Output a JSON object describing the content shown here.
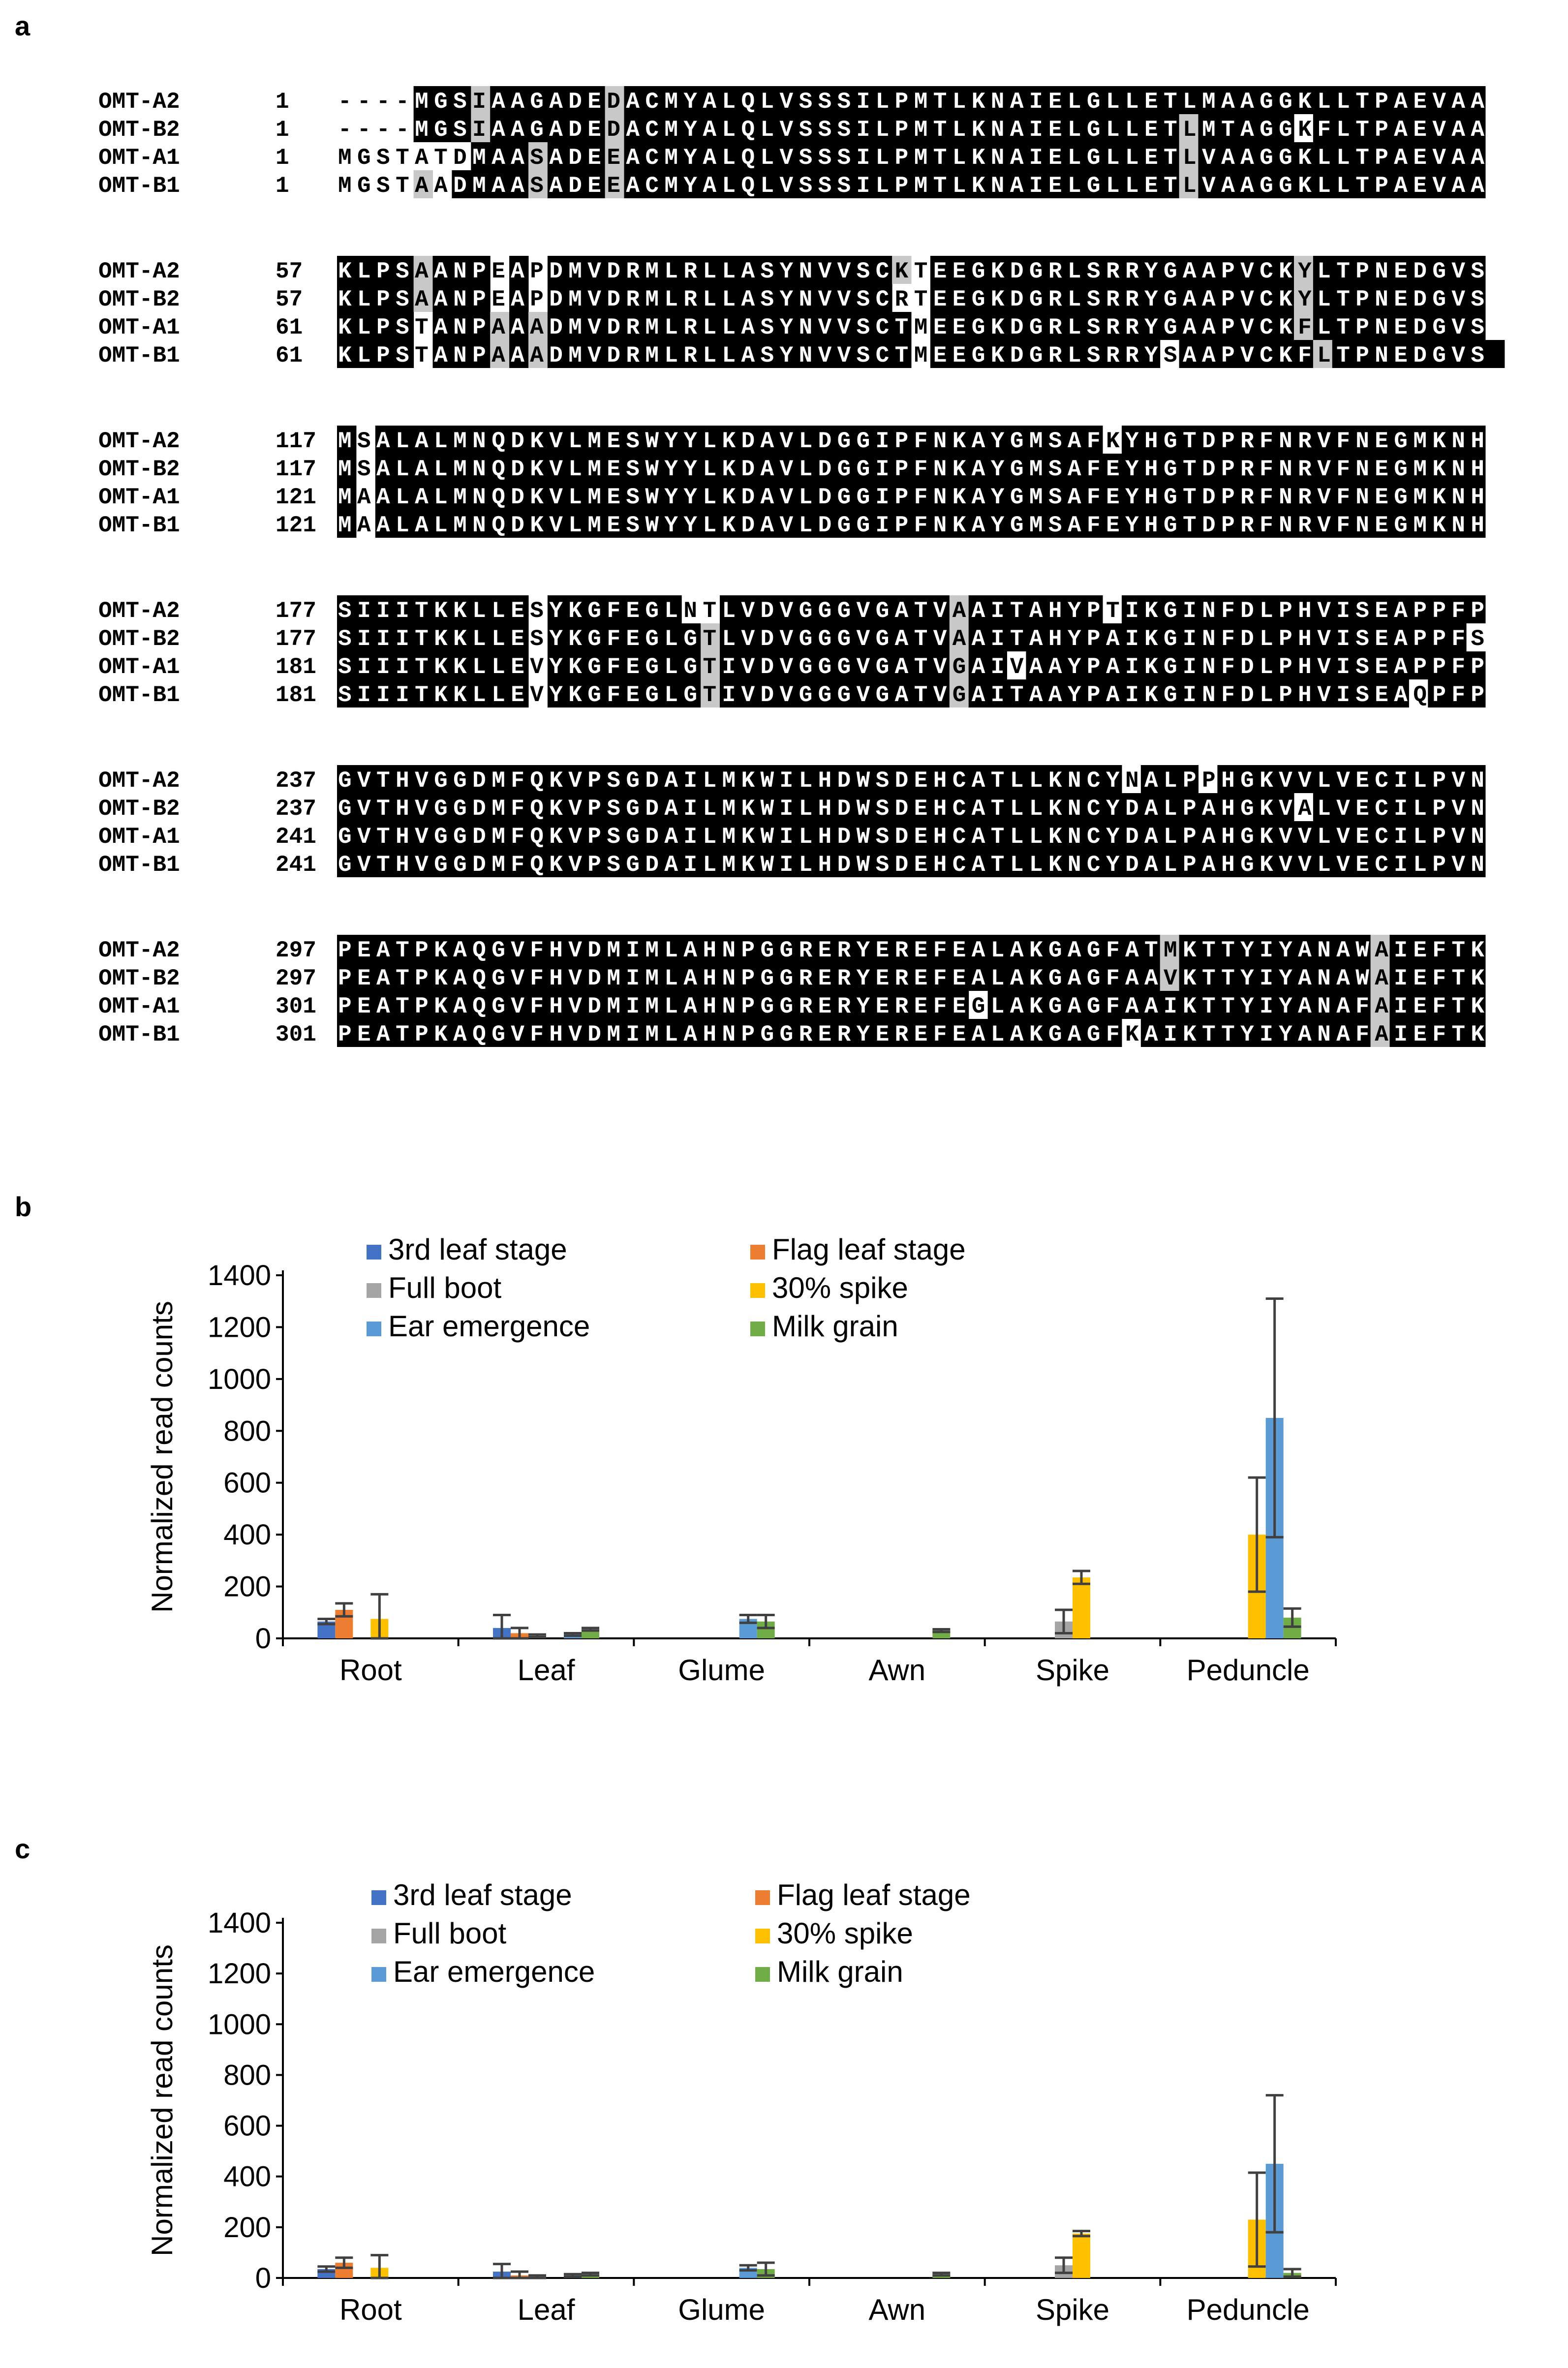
{
  "panels": {
    "a": "a",
    "b": "b",
    "c": "c"
  },
  "alignment": {
    "blocks": [
      {
        "rows": [
          {
            "name": "OMT-A2",
            "start": "1",
            "seq": "----MGSIAAGADEDACMYALQLVSSSILPMTLKNAIELGLLETLMAAGGKLLTPAEVAA",
            "shade": "wwwwbbbgbbbbbbgbbbbbbbbbbbbbbbbbbbbbbbbbbbbbbbbbbbbbbbbbbbbb"
          },
          {
            "name": "OMT-B2",
            "start": "1",
            "seq": "----MGSIAAGADEDACMYALQLVSSSILPMTLKNAIELGLLETLMTAGGKFLTPAEVAA",
            "shade": "wwwwbbbgbbbbbbgbbbbbbbbbbbbbbbbbbbbbbbbbbbbbgbbbbbwbbbbbbbbb"
          },
          {
            "name": "OMT-A1",
            "start": "1",
            "seq": "MGSTATDMAASADEEACMYALQLVSSSILPMTLKNAIELGLLETLVAAGGKLLTPAEVAA",
            "shade": "wwwwwwwbbbgbbbgbbbbbbbbbbbbbbbbbbbbbbbbbbbbbgbbbbbbbbbbbbbbb"
          },
          {
            "name": "OMT-B1",
            "start": "1",
            "seq": "MGSTAADMAASADEEACMYALQLVSSSILPMTLKNAIELGLLETLVAAGGKLLTPAEVAA",
            "shade": "wwwwgwbbbbgbbbgbbbbbbbbbbbbbbbbbbbbbbbbbbbbbgbbbbbbbbbbbbbbb"
          }
        ]
      },
      {
        "rows": [
          {
            "name": "OMT-A2",
            "start": "57",
            "seq": "KLPSAANPEAPDMVDRMLRLLASYNVVSCKTEEGKDGRLSRRYGAAPVCKYLTPNEDGVS",
            "shade": "bbbbgbbbwbwbbbbbbbbbbbbbbbbbbgwbbbbbbbbbbbbbbbbbbbgbbbbbbbbb"
          },
          {
            "name": "OMT-B2",
            "start": "57",
            "seq": "KLPSAANPEAPDMVDRMLRLLASYNVVSCRTEEGKDGRLSRRYGAAPVCKYLTPNEDGVS",
            "shade": "bbbbgbbbwbwbbbbbbbbbbbbbbbbbbwwbbbbbbbbbbbbbbbbbbbgbbbbbbbbb"
          },
          {
            "name": "OMT-A1",
            "start": "61",
            "seq": "KLPSTANPAAADMVDRMLRLLASYNVVSCTMEEGKDGRLSRRYGAAPVCKFLTPNEDGVS",
            "shade": "bbbbwbbbgbgbbbbbbbbbbbbbbbbbbbwbbbbbbbbbbbbbbbbbbbgbbbbbbbbb"
          },
          {
            "name": "OMT-B1",
            "start": "61",
            "seq": "KLPSTANPAAADMVDRMLRLLASYNVVSCTMEEGKDGRLSRRYSAAPVCKFLTPNEDGVS",
            "shade": "bbbbwbbbgbgbbbbbbbbbbbbbbbbbbbwbbbbbbbbbbbbwbbbbbbbgbbbbbbbbb"
          }
        ]
      },
      {
        "rows": [
          {
            "name": "OMT-A2",
            "start": "117",
            "seq": "MSALALMNQDKVLMESWYYLKDAVLDGGIPFNKAYGMSAFKYHGTDPRFNRVFNEGMKNH",
            "shade": "bwbbbbbbbbbbbbbbbbbbbbbbbbbbbbbbbbbbbbbbwbbbbbbbbbbbbbbbbbbb"
          },
          {
            "name": "OMT-B2",
            "start": "117",
            "seq": "MSALALMNQDKVLMESWYYLKDAVLDGGIPFNKAYGMSAFEYHGTDPRFNRVFNEGMKNH",
            "shade": "bwbbbbbbbbbbbbbbbbbbbbbbbbbbbbbbbbbbbbbbbbbbbbbbbbbbbbbbbbbb"
          },
          {
            "name": "OMT-A1",
            "start": "121",
            "seq": "MAALALMNQDKVLMESWYYLKDAVLDGGIPFNKAYGMSAFEYHGTDPRFNRVFNEGMKNH",
            "shade": "bwbbbbbbbbbbbbbbbbbbbbbbbbbbbbbbbbbbbbbbbbbbbbbbbbbbbbbbbbbb"
          },
          {
            "name": "OMT-B1",
            "start": "121",
            "seq": "MAALALMNQDKVLMESWYYLKDAVLDGGIPFNKAYGMSAFEYHGTDPRFNRVFNEGMKNH",
            "shade": "bwbbbbbbbbbbbbbbbbbbbbbbbbbbbbbbbbbbbbbbbbbbbbbbbbbbbbbbbbbb"
          }
        ]
      },
      {
        "rows": [
          {
            "name": "OMT-A2",
            "start": "177",
            "seq": "SIIITKKLLESYKGFEGLNTLVDVGGGVGATVAAITAHYPTIKGINFDLPHVISEAPPFP",
            "shade": "bbbbbbbbbbwbbbbbbbwwbbbbbbbbbbbbgbbbbbbbwbbbbbbbbbbbbbbbbbbb"
          },
          {
            "name": "OMT-B2",
            "start": "177",
            "seq": "SIIITKKLLESYKGFEGLGTLVDVGGGVGATVAAITAHYPAIKGINFDLPHVISEAPPFS",
            "shade": "bbbbbbbbbbwbbbbbbbbgbbbbbbbbbbbbgbbbbbbbbbbbbbbbbbbbbbbbbbbw"
          },
          {
            "name": "OMT-A1",
            "start": "181",
            "seq": "SIIITKKLLEVYKGFEGLGTIVDVGGGVGATVGAIVAAYPAIKGINFDLPHVISEAPPFP",
            "shade": "bbbbbbbbbbwbbbbbbbbgbbbbbbbbbbbbgbbwbbbbbbbbbbbbbbbbbbbbbbbb"
          },
          {
            "name": "OMT-B1",
            "start": "181",
            "seq": "SIIITKKLLEVYKGFEGLGTIVDVGGGVGATVGAITAAYPAIKGINFDLPHVISEAQPFP",
            "shade": "bbbbbbbbbbwbbbbbbbbgbbbbbbbbbbbbgbbbbbbbbbbbbbbbbbbbbbbbwbbb"
          }
        ]
      },
      {
        "rows": [
          {
            "name": "OMT-A2",
            "start": "237",
            "seq": "GVTHVGGDMFQKVPSGDAILMKWILHDWSDEHCATLLKNCYNALPPHGKVVLVECILPVN",
            "shade": "bbbbbbbbbbbbbbbbbbbbbbbbbbbbbbbbbbbbbbbbbwbbbwbbbbbbbbbbbbbb"
          },
          {
            "name": "OMT-B2",
            "start": "237",
            "seq": "GVTHVGGDMFQKVPSGDAILMKWILHDWSDEHCATLLKNCYDALPAHGKVALVECILPVN",
            "shade": "bbbbbbbbbbbbbbbbbbbbbbbbbbbbbbbbbbbbbbbbbbbbbbbbbbwbbbbbbbbb"
          },
          {
            "name": "OMT-A1",
            "start": "241",
            "seq": "GVTHVGGDMFQKVPSGDAILMKWILHDWSDEHCATLLKNCYDALPAHGKVVLVECILPVN",
            "shade": "bbbbbbbbbbbbbbbbbbbbbbbbbbbbbbbbbbbbbbbbbbbbbbbbbbbbbbbbbbbb"
          },
          {
            "name": "OMT-B1",
            "start": "241",
            "seq": "GVTHVGGDMFQKVPSGDAILMKWILHDWSDEHCATLLKNCYDALPAHGKVVLVECILPVN",
            "shade": "bbbbbbbbbbbbbbbbbbbbbbbbbbbbbbbbbbbbbbbbbbbbbbbbbbbbbbbbbbbb"
          }
        ]
      },
      {
        "rows": [
          {
            "name": "OMT-A2",
            "start": "297",
            "seq": "PEATPKAQGVFHVDMIMLAHNPGGRERYEREFEALAKGAGFATMKTTYIYANAWAIEFTK",
            "shade": "bbbbbbbbbbbbbbbbbbbbbbbbbbbbbbbbbbbbbbbbbbbgbbbbbbbbbbgbbbbb"
          },
          {
            "name": "OMT-B2",
            "start": "297",
            "seq": "PEATPKAQGVFHVDMIMLAHNPGGRERYEREFEALAKGAGFAAVKTTYIYANAWAIEFTK",
            "shade": "bbbbbbbbbbbbbbbbbbbbbbbbbbbbbbbbbbbbbbbbbbbgbbbbbbbbbbgbbbbb"
          },
          {
            "name": "OMT-A1",
            "start": "301",
            "seq": "PEATPKAQGVFHVDMIMLAHNPGGRERYEREFEGLAKGAGFAAIKTTYIYANAFAIEFTK",
            "shade": "bbbbbbbbbbbbbbbbbbbbbbbbbbbbbbbbbwbbbbbbbbbbbbbbbbbbbbgbbbbb"
          },
          {
            "name": "OMT-B1",
            "start": "301",
            "seq": "PEATPKAQGVFHVDMIMLAHNPGGRERYEREFEALAKGAGFKAIKTTYIYANAFAIEFTK",
            "shade": "bbbbbbbbbbbbbbbbbbbbbbbbbbbbbbbbbbbbbbbbbwbbbbbbbbbbbbgbbbbb"
          }
        ]
      }
    ]
  },
  "chart_data": [
    {
      "type": "bar",
      "panel": "b",
      "title": "",
      "xlabel": "",
      "ylabel": "Normalized read counts",
      "ylim": [
        0,
        1400
      ],
      "yticks": [
        0,
        200,
        400,
        600,
        800,
        1000,
        1200,
        1400
      ],
      "categories": [
        "Root",
        "Leaf",
        "Glume",
        "Awn",
        "Spike",
        "Peduncle"
      ],
      "legend_position": "top-left",
      "series": [
        {
          "name": "3rd leaf stage",
          "color": "#4472c4",
          "values": [
            65,
            40,
            0,
            0,
            0,
            0
          ],
          "errors": [
            10,
            50,
            0,
            0,
            0,
            0
          ]
        },
        {
          "name": "Flag leaf stage",
          "color": "#ed7d31",
          "values": [
            110,
            20,
            0,
            0,
            0,
            0
          ],
          "errors": [
            25,
            20,
            0,
            0,
            0,
            0
          ]
        },
        {
          "name": "Full boot",
          "color": "#a5a5a5",
          "values": [
            0,
            10,
            0,
            0,
            65,
            0
          ],
          "errors": [
            0,
            5,
            0,
            0,
            45,
            0
          ]
        },
        {
          "name": "30% spike",
          "color": "#ffc000",
          "values": [
            75,
            0,
            0,
            0,
            235,
            400
          ],
          "errors": [
            95,
            0,
            0,
            0,
            25,
            220
          ]
        },
        {
          "name": "Ear emergence",
          "color": "#5b9bd5",
          "values": [
            0,
            15,
            75,
            0,
            0,
            850
          ],
          "errors": [
            0,
            5,
            15,
            0,
            0,
            460
          ]
        },
        {
          "name": "Milk grain",
          "color": "#70ad47",
          "values": [
            0,
            35,
            65,
            30,
            0,
            80
          ],
          "errors": [
            0,
            5,
            25,
            5,
            0,
            35
          ]
        }
      ]
    },
    {
      "type": "bar",
      "panel": "c",
      "title": "",
      "xlabel": "",
      "ylabel": "Normalized read counts",
      "ylim": [
        0,
        1400
      ],
      "yticks": [
        0,
        200,
        400,
        600,
        800,
        1000,
        1200,
        1400
      ],
      "categories": [
        "Root",
        "Leaf",
        "Glume",
        "Awn",
        "Spike",
        "Peduncle"
      ],
      "legend_position": "top-left",
      "series": [
        {
          "name": "3rd leaf stage",
          "color": "#4472c4",
          "values": [
            35,
            25,
            0,
            0,
            0,
            0
          ],
          "errors": [
            10,
            30,
            0,
            0,
            0,
            0
          ]
        },
        {
          "name": "Flag leaf stage",
          "color": "#ed7d31",
          "values": [
            60,
            10,
            0,
            0,
            0,
            0
          ],
          "errors": [
            20,
            15,
            0,
            0,
            0,
            0
          ]
        },
        {
          "name": "Full boot",
          "color": "#a5a5a5",
          "values": [
            0,
            5,
            0,
            0,
            50,
            0
          ],
          "errors": [
            0,
            5,
            0,
            0,
            30,
            0
          ]
        },
        {
          "name": "30% spike",
          "color": "#ffc000",
          "values": [
            40,
            0,
            0,
            0,
            175,
            230
          ],
          "errors": [
            50,
            0,
            0,
            0,
            10,
            185
          ]
        },
        {
          "name": "Ear emergence",
          "color": "#5b9bd5",
          "values": [
            0,
            10,
            40,
            0,
            0,
            450
          ],
          "errors": [
            0,
            5,
            10,
            0,
            0,
            270
          ]
        },
        {
          "name": "Milk grain",
          "color": "#70ad47",
          "values": [
            0,
            15,
            35,
            15,
            0,
            20
          ],
          "errors": [
            0,
            5,
            25,
            5,
            0,
            15
          ]
        }
      ]
    }
  ]
}
